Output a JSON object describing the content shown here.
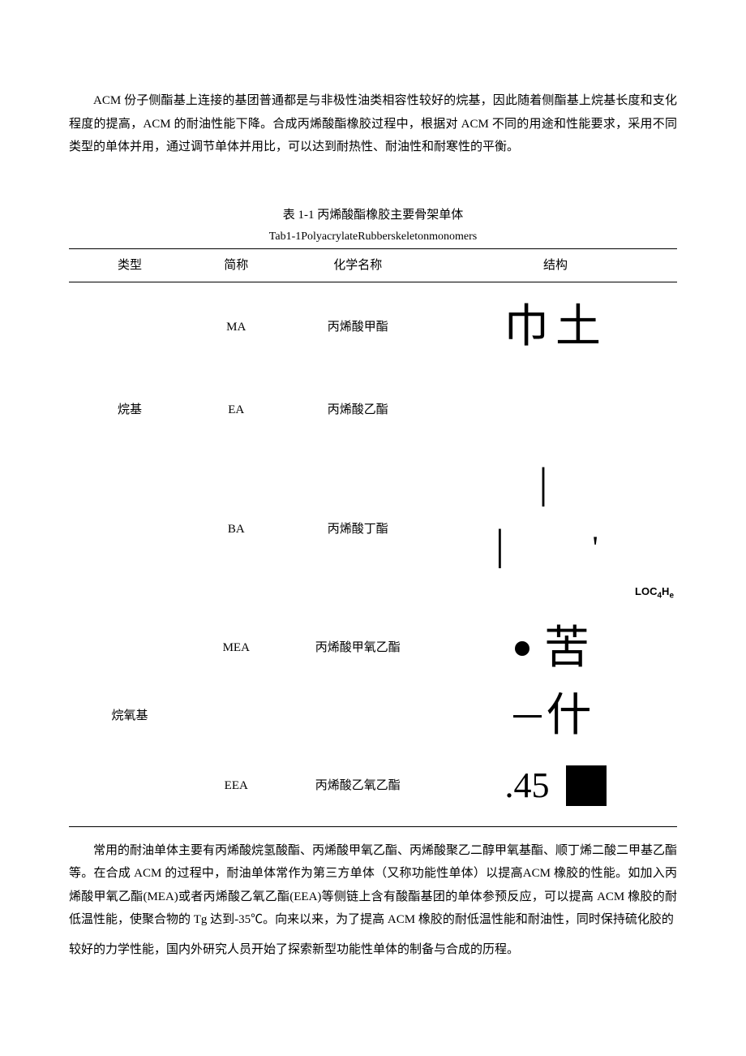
{
  "paragraphs": {
    "intro": "ACM 份子侧酯基上连接的基团普通都是与非极性油类相容性较好的烷基，因此随着侧酯基上烷基长度和支化程度的提高，ACM 的耐油性能下降。合成丙烯酸酯橡胶过程中，根据对 ACM 不同的用途和性能要求，采用不同类型的单体并用，通过调节单体并用比，可以达到耐热性、耐油性和耐寒性的平衡。",
    "conclusion1": "常用的耐油单体主要有丙烯酸烷氢酸酯、丙烯酸甲氧乙酯、丙烯酸聚乙二醇甲氧基酯、顺丁烯二酸二甲基乙酯等。在合成 ACM 的过程中，耐油单体常作为第三方单体（又称功能性单体）以提高ACM 橡胶的性能。如加入丙烯酸甲氧乙酯(MEA)或者丙烯酸乙氧乙酯(EEA)等侧链上含有酸酯基团的单体参预反应，可以提高 ACM 橡胶的耐低温性能，使聚合物的 Tg 达到-35℃。向来以来，为了提高 ACM 橡胶的耐低温性能和耐油性，同时保持硫化胶的",
    "conclusion2": "较好的力学性能，国内外研究人员开始了探索新型功能性单体的制备与合成的历程。"
  },
  "table": {
    "title": "表 1-1 丙烯酸酯橡胶主要骨架单体",
    "subtitle": "Tab1-1PolyacrylateRubberskeletonmonomers",
    "headers": {
      "type": "类型",
      "abbr": "简称",
      "name": "化学名称",
      "struct": "结构"
    },
    "rows": [
      {
        "type": "",
        "abbr": "MA",
        "name": "丙烯酸甲酯",
        "struct_glyph": "巾土"
      },
      {
        "type": "烷基",
        "abbr": "EA",
        "name": "丙烯酸乙酯",
        "struct_glyph": ""
      },
      {
        "type": "",
        "abbr": "BA",
        "name": "丙烯酸丁酯",
        "struct_ticks": "| | '",
        "struct_formula": "LOC₄H₉"
      },
      {
        "type": "",
        "abbr": "MEA",
        "name": "丙烯酸甲氧乙酯",
        "struct_char": "苦"
      },
      {
        "type": "烷氧基",
        "abbr": "",
        "name": "",
        "struct_char": "什"
      },
      {
        "type": "",
        "abbr": "EEA",
        "name": "丙烯酸乙氧乙酯",
        "struct_num": ".45"
      }
    ],
    "formula_parts": {
      "loc": "LOC",
      "sub1": "4",
      "h": "H",
      "sub2": "e"
    }
  },
  "colors": {
    "text": "#000000",
    "background": "#ffffff",
    "border": "#000000"
  },
  "typography": {
    "body_fontsize": 15,
    "glyph_fontsize": 56,
    "line_height": 1.9
  }
}
